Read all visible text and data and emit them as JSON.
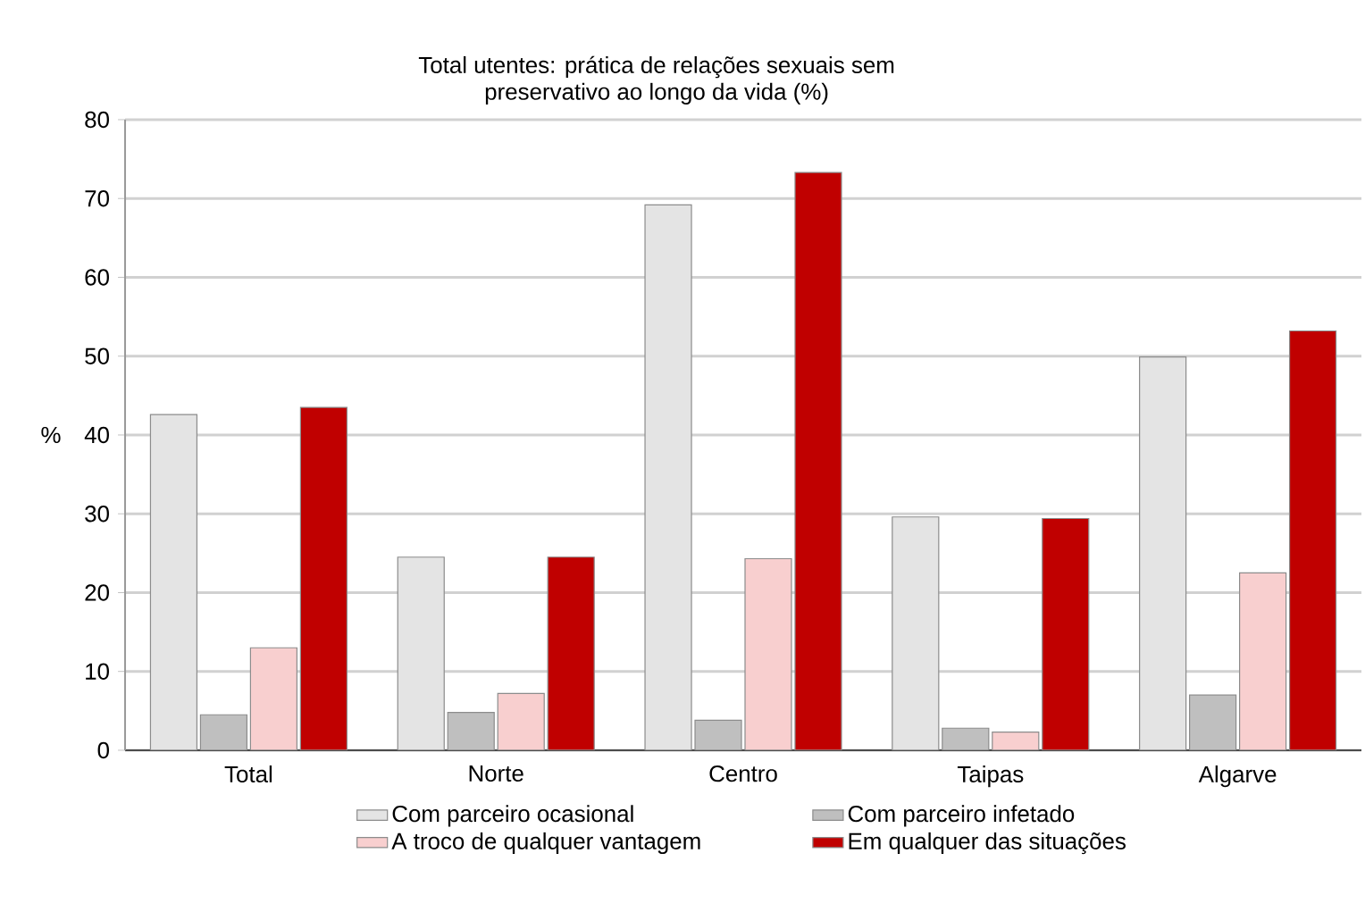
{
  "chart_data": {
    "type": "bar",
    "title": "Total utentes: prática de relações sexuais sem preservativo ao longo da vida (%)",
    "ylabel": "%",
    "categories": [
      "Total",
      "Norte",
      "Centro",
      "Taipas",
      "Algarve"
    ],
    "series": [
      {
        "name": "Com parceiro ocasional",
        "color": "#e4e4e4",
        "values": [
          42.6,
          24.5,
          69.2,
          29.6,
          49.9
        ]
      },
      {
        "name": "Com parceiro infetado",
        "color": "#bfbfbf",
        "values": [
          4.5,
          4.8,
          3.8,
          2.8,
          7.0
        ]
      },
      {
        "name": "A troco de qualquer vantagem",
        "color": "#f8cfcf",
        "values": [
          13.0,
          7.2,
          24.3,
          2.3,
          22.5
        ]
      },
      {
        "name": "Em qualquer das situações",
        "color": "#c00000",
        "values": [
          43.5,
          24.5,
          73.3,
          29.4,
          53.2
        ]
      }
    ],
    "ylim": [
      0,
      80
    ],
    "yticks": [
      0,
      10,
      20,
      30,
      40,
      50,
      60,
      70,
      80
    ],
    "grid": "y",
    "legend": "bottom"
  }
}
